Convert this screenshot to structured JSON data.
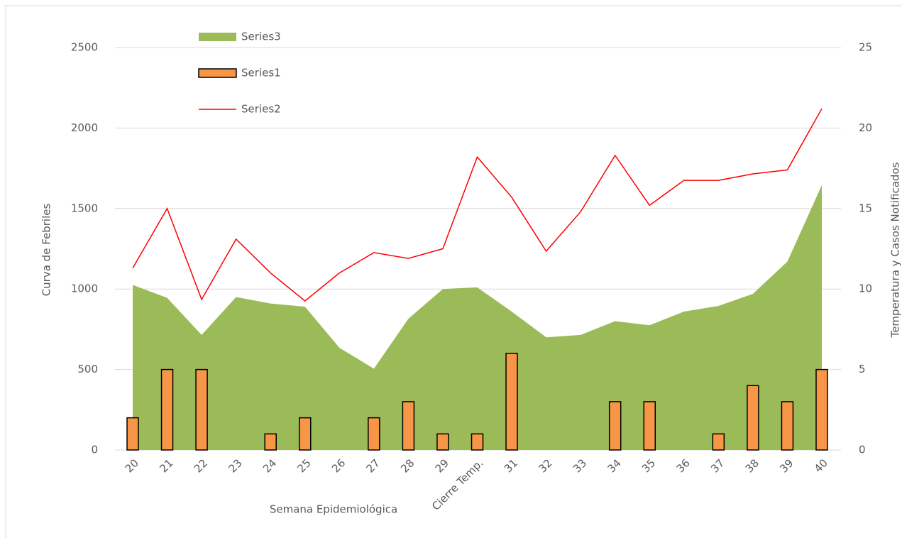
{
  "chart_data": {
    "type": "combo",
    "xlabel": "Semana Epidemiológica",
    "ylabel": "Curva de Febriles",
    "y2label": "Temperatura y Casos Notificados",
    "categories": [
      "20",
      "21",
      "22",
      "23",
      "24",
      "25",
      "26",
      "27",
      "28",
      "29",
      "Cierre Temp.",
      "31",
      "32",
      "33",
      "34",
      "35",
      "36",
      "37",
      "38",
      "39",
      "40"
    ],
    "ylim": [
      0,
      2500
    ],
    "yticks": [
      0,
      500,
      1000,
      1500,
      2000,
      2500
    ],
    "y2lim": [
      0,
      25
    ],
    "y2ticks": [
      0,
      5,
      10,
      15,
      20,
      25
    ],
    "grid": true,
    "legend": "top-left",
    "series": [
      {
        "name": "Series3",
        "type": "area",
        "axis": "y",
        "color": "#9bbb59",
        "values": [
          1025,
          945,
          715,
          950,
          910,
          890,
          635,
          505,
          815,
          1000,
          1010,
          860,
          700,
          715,
          800,
          775,
          860,
          895,
          970,
          1170,
          1645
        ]
      },
      {
        "name": "Series1",
        "type": "bar",
        "axis": "y2",
        "color": "#f79646",
        "values": [
          2,
          5,
          5,
          0,
          1,
          2,
          0,
          2,
          3,
          1,
          1,
          6,
          0,
          0,
          3,
          3,
          0,
          1,
          4,
          3,
          5
        ]
      },
      {
        "name": "Series2",
        "type": "line",
        "axis": "y2",
        "color": "#ff0000",
        "values": [
          11.3,
          15.0,
          9.35,
          13.1,
          11.0,
          9.26,
          11.0,
          12.26,
          11.9,
          12.5,
          18.2,
          15.7,
          12.35,
          14.8,
          18.3,
          15.2,
          16.75,
          16.75,
          17.15,
          17.4,
          21.2
        ]
      }
    ]
  }
}
